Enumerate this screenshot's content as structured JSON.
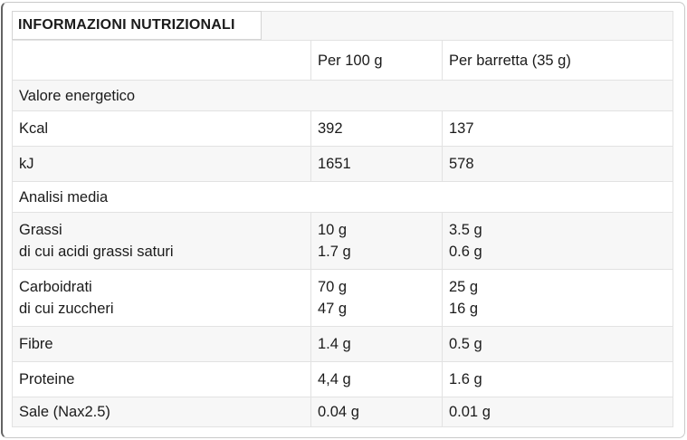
{
  "table": {
    "title": "INFORMAZIONI NUTRIZIONALI",
    "columns": {
      "label": "",
      "per100": "Per 100 g",
      "barretta": "Per barretta (35 g)"
    },
    "rows": [
      {
        "type": "section",
        "label": "Valore energetico"
      },
      {
        "type": "data",
        "label": "Kcal",
        "per100": "392",
        "barretta": "137"
      },
      {
        "type": "data",
        "label": "kJ",
        "per100": "1651",
        "barretta": "578"
      },
      {
        "type": "section",
        "label": "Analisi media"
      },
      {
        "type": "data",
        "label": "Grassi",
        "label2": "di cui acidi grassi saturi",
        "per100": "10 g",
        "per100b": "1.7 g",
        "barretta": "3.5 g",
        "barrettab": "0.6 g"
      },
      {
        "type": "data",
        "label": "Carboidrati",
        "label2": "di cui zuccheri",
        "per100": "70 g",
        "per100b": "47 g",
        "barretta": "25 g",
        "barrettab": "16 g"
      },
      {
        "type": "data",
        "label": "Fibre",
        "per100": "1.4 g",
        "barretta": "0.5 g"
      },
      {
        "type": "data",
        "label": "Proteine",
        "per100": "4,4 g",
        "barretta": "1.6 g"
      },
      {
        "type": "data",
        "label": "Sale (Nax2.5)",
        "per100": "0.04 g",
        "barretta": "0.01 g"
      }
    ],
    "colors": {
      "stripe": "#f7f7f7",
      "cell_border": "#e2e2e2",
      "title_border": "#d4d4d4",
      "text": "#1b1b1b"
    }
  }
}
